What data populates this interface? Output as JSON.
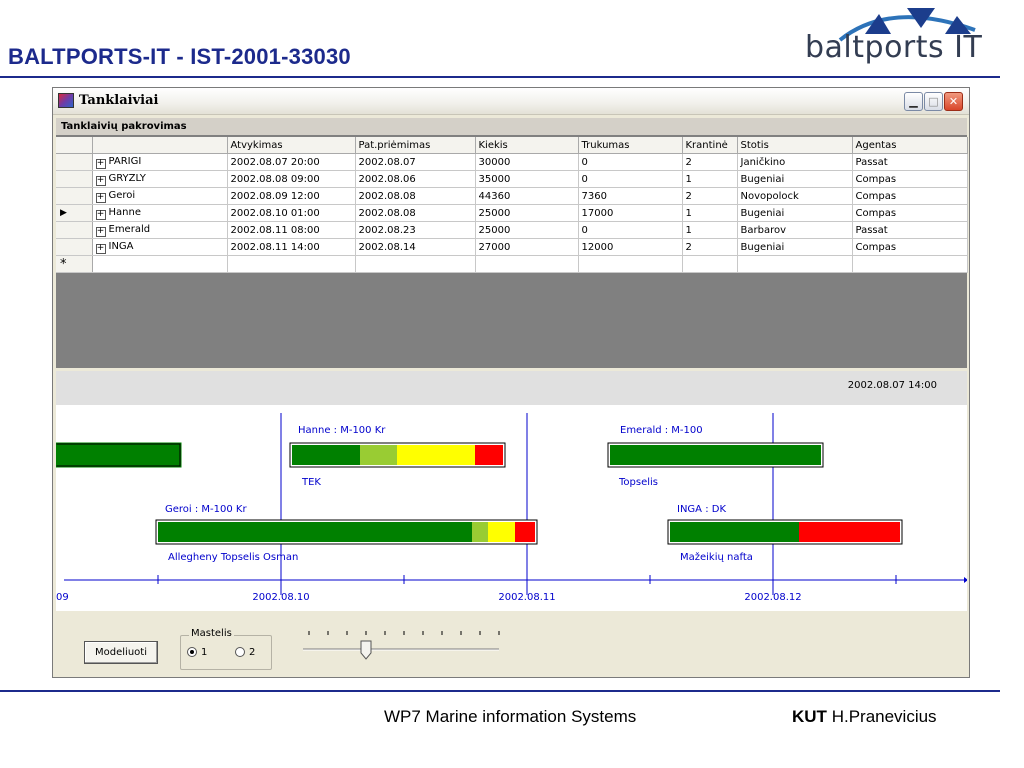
{
  "slide": {
    "title": "BALTPORTS-IT - IST-2001-33030",
    "logo_text": "baltports IT",
    "footer_center": "WP7 Marine information Systems",
    "footer_org": "KUT",
    "footer_author": "H.Pranevicius"
  },
  "window": {
    "title": "Tanklaiviai",
    "controls": [
      "minimize",
      "maximize",
      "close"
    ]
  },
  "grid": {
    "caption": "Tanklaivių pakrovimas",
    "columns": [
      "",
      "Atvykimas",
      "Pat.priėmimas",
      "Kiekis",
      "Trukumas",
      "Krantinė",
      "Stotis",
      "Agentas"
    ],
    "rows": [
      {
        "current": false,
        "name": "PARIGI",
        "atvykimas": "2002.08.07 20:00",
        "priemimas": "2002.08.07",
        "kiekis": "30000",
        "trukumas": "0",
        "krantine": "2",
        "stotis": "Janičkino",
        "agentas": "Passat"
      },
      {
        "current": false,
        "name": "GRYZLY",
        "atvykimas": "2002.08.08 09:00",
        "priemimas": "2002.08.06",
        "kiekis": "35000",
        "trukumas": "0",
        "krantine": "1",
        "stotis": "Bugeniai",
        "agentas": "Compas"
      },
      {
        "current": false,
        "name": "Geroi",
        "atvykimas": "2002.08.09 12:00",
        "priemimas": "2002.08.08",
        "kiekis": "44360",
        "trukumas": "7360",
        "krantine": "2",
        "stotis": "Novopolock",
        "agentas": "Compas"
      },
      {
        "current": true,
        "name": "Hanne",
        "atvykimas": "2002.08.10 01:00",
        "priemimas": "2002.08.08",
        "kiekis": "25000",
        "trukumas": "17000",
        "krantine": "1",
        "stotis": "Bugeniai",
        "agentas": "Compas"
      },
      {
        "current": false,
        "name": "Emerald",
        "atvykimas": "2002.08.11 08:00",
        "priemimas": "2002.08.23",
        "kiekis": "25000",
        "trukumas": "0",
        "krantine": "1",
        "stotis": "Barbarov",
        "agentas": "Passat"
      },
      {
        "current": false,
        "name": "INGA",
        "atvykimas": "2002.08.11 14:00",
        "priemimas": "2002.08.14",
        "kiekis": "27000",
        "trukumas": "12000",
        "krantine": "2",
        "stotis": "Bugeniai",
        "agentas": "Compas"
      }
    ],
    "new_row_marker": "*"
  },
  "current_datetime": "2002.08.07  14:00",
  "timeline": {
    "ticks": [
      "09",
      "2002.08.10",
      "2002.08.11",
      "2002.08.12"
    ],
    "labels": {
      "hanne_title": "Hanne : M-100 Kr",
      "hanne_sub": "TEK",
      "emerald_title": "Emerald : M-100",
      "emerald_sub": "Topselis",
      "geroi_title": "Geroi : M-100 Kr",
      "geroi_sub": "Allegheny Topselis Osman",
      "inga_title": "INGA : DK",
      "inga_sub": "Mažeikių nafta"
    },
    "colors": {
      "green": "#008000",
      "light_green": "#99cc33",
      "yellow": "#ffff00",
      "red": "#ff0000",
      "axis": "#0000cc"
    }
  },
  "controls": {
    "model_button": "Modeliuoti",
    "scale_group": "Mastelis",
    "scale_options": [
      "1",
      "2"
    ],
    "scale_selected": "1",
    "slider_position": 0.3
  }
}
